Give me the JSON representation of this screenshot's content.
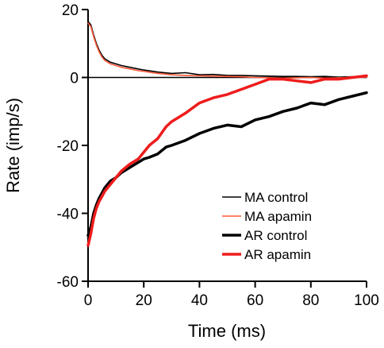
{
  "chart_data": {
    "type": "line",
    "title": "",
    "xlabel": "Time (ms)",
    "ylabel": "Rate (imp/s)",
    "xlim": [
      0,
      100
    ],
    "ylim": [
      -60,
      20
    ],
    "xticks": [
      0,
      20,
      40,
      60,
      80,
      100
    ],
    "yticks": [
      -60,
      -40,
      -20,
      0,
      20
    ],
    "grid": false,
    "zero_line": true,
    "legend_position": "bottom-right",
    "series": [
      {
        "name": "MA control",
        "color": "#000000",
        "weight": "thin",
        "x": [
          0,
          1,
          2,
          3,
          4,
          5,
          6,
          8,
          10,
          12,
          15,
          18,
          20,
          25,
          30,
          35,
          40,
          45,
          50,
          55,
          60,
          65,
          70,
          75,
          80,
          85,
          90,
          95,
          100
        ],
        "y": [
          16.5,
          15.5,
          12.5,
          10.0,
          8.0,
          6.5,
          5.5,
          4.5,
          4.0,
          3.5,
          3.0,
          2.5,
          2.2,
          1.6,
          1.2,
          1.4,
          0.8,
          0.9,
          0.6,
          0.6,
          0.5,
          0.4,
          0.3,
          0.3,
          0.2,
          0.3,
          0.1,
          0.2,
          0.0
        ]
      },
      {
        "name": "MA apamin",
        "color": "#ff5a3c",
        "weight": "thin",
        "x": [
          0,
          1,
          2,
          3,
          4,
          5,
          6,
          8,
          10,
          12,
          15,
          18,
          20,
          25,
          30,
          35,
          40,
          45,
          50,
          55,
          60,
          65,
          70,
          75,
          80,
          85,
          90,
          95,
          100
        ],
        "y": [
          16.0,
          15.0,
          12.0,
          9.5,
          7.5,
          6.0,
          5.0,
          4.0,
          3.5,
          3.0,
          2.5,
          2.0,
          1.8,
          1.2,
          0.8,
          0.6,
          0.5,
          0.4,
          0.3,
          0.2,
          0.0,
          -0.1,
          -0.2,
          -0.1,
          0.0,
          -0.2,
          -0.1,
          0.0,
          0.1
        ]
      },
      {
        "name": "AR control",
        "color": "#000000",
        "weight": "thick",
        "x": [
          0,
          1,
          2,
          3,
          4,
          5,
          6,
          8,
          10,
          12,
          15,
          18,
          20,
          22,
          25,
          28,
          30,
          35,
          40,
          45,
          50,
          55,
          60,
          65,
          70,
          75,
          80,
          85,
          90,
          95,
          100
        ],
        "y": [
          -46.5,
          -44.0,
          -40.0,
          -37.5,
          -35.5,
          -34.0,
          -32.5,
          -30.5,
          -29.5,
          -28.0,
          -26.5,
          -25.0,
          -24.0,
          -23.5,
          -22.5,
          -20.5,
          -20.0,
          -18.5,
          -16.5,
          -15.0,
          -14.0,
          -14.5,
          -12.5,
          -11.5,
          -10.0,
          -9.0,
          -7.5,
          -8.0,
          -6.5,
          -5.5,
          -4.5
        ]
      },
      {
        "name": "AR apamin",
        "color": "#ee1c1c",
        "weight": "thick",
        "x": [
          0,
          1,
          2,
          3,
          4,
          5,
          6,
          8,
          10,
          12,
          15,
          18,
          20,
          22,
          25,
          28,
          30,
          35,
          40,
          45,
          50,
          55,
          60,
          65,
          70,
          75,
          80,
          85,
          90,
          95,
          100
        ],
        "y": [
          -49.5,
          -46.0,
          -41.5,
          -38.5,
          -36.5,
          -35.0,
          -33.5,
          -31.5,
          -29.5,
          -27.5,
          -25.5,
          -24.0,
          -22.0,
          -20.0,
          -18.0,
          -14.5,
          -13.0,
          -10.5,
          -7.5,
          -6.0,
          -5.0,
          -3.5,
          -2.0,
          -0.5,
          -0.5,
          -1.0,
          -1.5,
          -0.5,
          -0.5,
          0.0,
          0.5
        ]
      }
    ]
  }
}
